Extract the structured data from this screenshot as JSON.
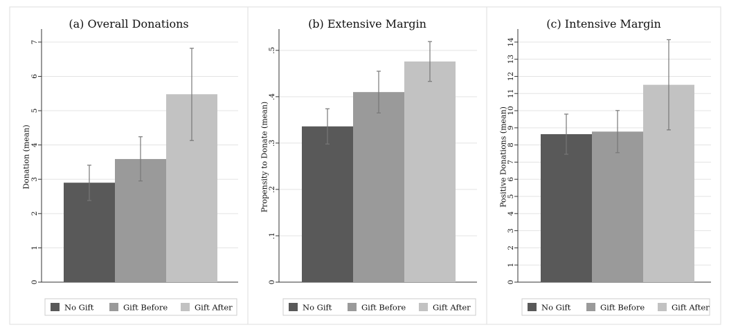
{
  "colors": {
    "no_gift": "#595959",
    "gift_before": "#9a9a9a",
    "gift_after": "#c2c2c2",
    "error_bar": "#777777",
    "grid": "#e3e3e3"
  },
  "chart_data": [
    {
      "type": "bar",
      "title": "(a) Overall Donations",
      "ylabel": "Donation (mean)",
      "ylim": [
        0,
        7.3
      ],
      "yticks": [
        0,
        1,
        2,
        3,
        4,
        5,
        6,
        7
      ],
      "ytick_labels": [
        "0",
        "1",
        "2",
        "3",
        "4",
        "5",
        "6",
        "7"
      ],
      "grid": true,
      "legend_position": "bottom",
      "series": [
        {
          "name": "No Gift",
          "value": 2.9,
          "ci": [
            2.38,
            3.41
          ]
        },
        {
          "name": "Gift Before",
          "value": 3.59,
          "ci": [
            2.95,
            4.24
          ]
        },
        {
          "name": "Gift After",
          "value": 5.48,
          "ci": [
            4.13,
            6.82
          ]
        }
      ]
    },
    {
      "type": "bar",
      "title": "(b) Extensive Margin",
      "ylabel": "Propensity to Donate (mean)",
      "ylim": [
        0,
        0.54
      ],
      "yticks": [
        0,
        0.1,
        0.2,
        0.3,
        0.4,
        0.5
      ],
      "ytick_labels": [
        "0",
        ".1",
        ".2",
        ".3",
        ".4",
        ".5"
      ],
      "grid": true,
      "legend_position": "bottom",
      "series": [
        {
          "name": "No Gift",
          "value": 0.336,
          "ci": [
            0.298,
            0.374
          ]
        },
        {
          "name": "Gift Before",
          "value": 0.41,
          "ci": [
            0.365,
            0.455
          ]
        },
        {
          "name": "Gift After",
          "value": 0.476,
          "ci": [
            0.433,
            0.519
          ]
        }
      ]
    },
    {
      "type": "bar",
      "title": "(c) Intensive Margin",
      "ylabel": "Positive Donations (mean)",
      "ylim": [
        0,
        14.6
      ],
      "yticks": [
        0,
        1,
        2,
        3,
        4,
        5,
        6,
        7,
        8,
        9,
        10,
        11,
        12,
        13,
        14
      ],
      "ytick_labels": [
        "0",
        "1",
        "2",
        "3",
        "4",
        "5",
        "6",
        "7",
        "8",
        "9",
        "10",
        "11",
        "12",
        "13",
        "14"
      ],
      "grid": true,
      "legend_position": "bottom",
      "series": [
        {
          "name": "No Gift",
          "value": 8.63,
          "ci": [
            7.46,
            9.8
          ]
        },
        {
          "name": "Gift Before",
          "value": 8.78,
          "ci": [
            7.55,
            10.01
          ]
        },
        {
          "name": "Gift After",
          "value": 11.51,
          "ci": [
            8.88,
            14.14
          ]
        }
      ]
    }
  ]
}
